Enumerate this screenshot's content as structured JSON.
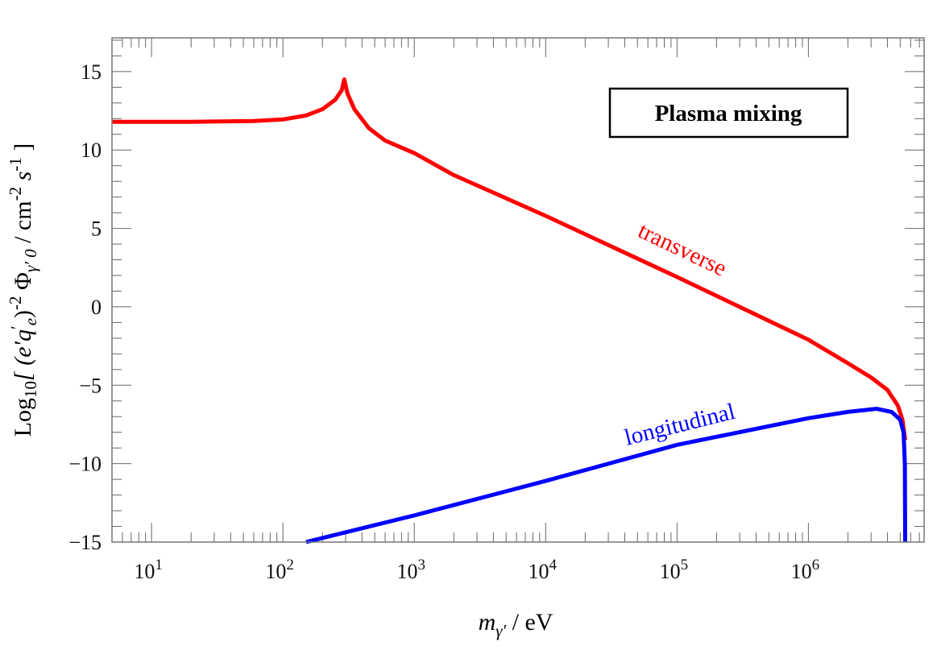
{
  "chart_data": {
    "type": "line",
    "x_scale": "log",
    "xlim": [
      5,
      7600000
    ],
    "ylim": [
      -15,
      17.15
    ],
    "grid": false,
    "xlabel": {
      "main": "m",
      "sub": "γ′",
      "unit": " / eV"
    },
    "ylabel": {
      "p1": "Log",
      "p1_sub": "10",
      "p2": "[ (e′q",
      "p2_sup": "′",
      "p2_sub": "e",
      "p3": ")",
      "p3_sup": "-2",
      "p4": " Φ",
      "p4_sub": "γ′ 0",
      "p5": " / cm",
      "p5_sup": "-2",
      "p6": " s",
      "p6_sup": "-1",
      "p7": " ]"
    },
    "x_ticks": [
      {
        "value": 10,
        "base": "10",
        "exp": "1"
      },
      {
        "value": 100,
        "base": "10",
        "exp": "2"
      },
      {
        "value": 1000,
        "base": "10",
        "exp": "3"
      },
      {
        "value": 10000,
        "base": "10",
        "exp": "4"
      },
      {
        "value": 100000,
        "base": "10",
        "exp": "5"
      },
      {
        "value": 1000000,
        "base": "10",
        "exp": "6"
      }
    ],
    "y_ticks": [
      {
        "value": 15,
        "label": "15"
      },
      {
        "value": 10,
        "label": "10"
      },
      {
        "value": 5,
        "label": "5"
      },
      {
        "value": 0,
        "label": "0"
      },
      {
        "value": -5,
        "label": "−5"
      },
      {
        "value": -10,
        "label": "−10"
      },
      {
        "value": -15,
        "label": "−15"
      }
    ],
    "legend": {
      "title": "Plasma mixing",
      "position": "top-right"
    },
    "series": [
      {
        "name": "transverse",
        "color": "#ff0000",
        "points": [
          [
            5,
            11.8
          ],
          [
            20,
            11.8
          ],
          [
            60,
            11.85
          ],
          [
            100,
            11.95
          ],
          [
            150,
            12.2
          ],
          [
            200,
            12.6
          ],
          [
            250,
            13.2
          ],
          [
            280,
            13.8
          ],
          [
            293,
            14.5
          ],
          [
            310,
            13.6
          ],
          [
            350,
            12.6
          ],
          [
            450,
            11.4
          ],
          [
            600,
            10.6
          ],
          [
            1000,
            9.8
          ],
          [
            2000,
            8.4
          ],
          [
            10000,
            5.8
          ],
          [
            100000,
            1.9
          ],
          [
            1000000,
            -2.1
          ],
          [
            2000000,
            -3.6
          ],
          [
            3000000,
            -4.5
          ],
          [
            4000000,
            -5.3
          ],
          [
            4800000,
            -6.3
          ],
          [
            5200000,
            -7.2
          ],
          [
            5450000,
            -8.5
          ]
        ]
      },
      {
        "name": "longitudinal",
        "color": "#0000ff",
        "points": [
          [
            150,
            -15
          ],
          [
            1000,
            -13.3
          ],
          [
            10000,
            -11.1
          ],
          [
            100000,
            -8.8
          ],
          [
            1000000,
            -7.1
          ],
          [
            2000000,
            -6.7
          ],
          [
            3300000,
            -6.5
          ],
          [
            4300000,
            -6.7
          ],
          [
            5000000,
            -7.2
          ],
          [
            5300000,
            -8
          ],
          [
            5420000,
            -10
          ],
          [
            5450000,
            -15
          ]
        ]
      }
    ]
  }
}
